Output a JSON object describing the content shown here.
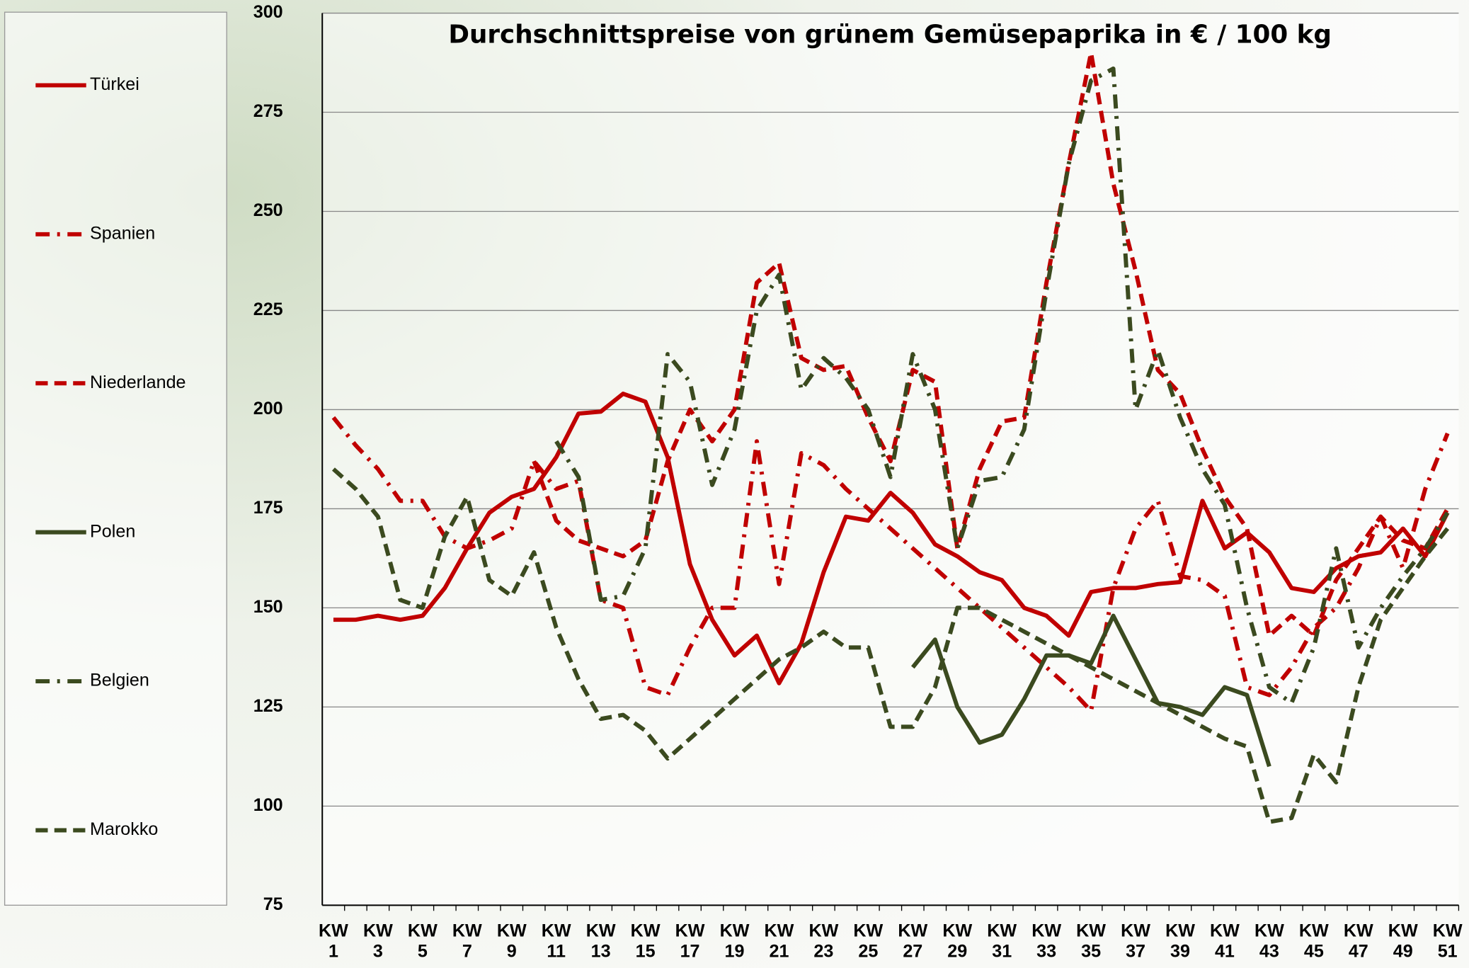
{
  "chart_data": {
    "type": "line",
    "title": "Durchschnittspreise von grünem Gemüsepaprika in € / 100 kg",
    "categories": [
      "KW 1",
      null,
      "KW 3",
      null,
      "KW 5",
      null,
      "KW 7",
      null,
      "KW 9",
      null,
      "KW 11",
      null,
      "KW 13",
      null,
      "KW 15",
      null,
      "KW 17",
      null,
      "KW 19",
      null,
      "KW 21",
      null,
      "KW 23",
      null,
      "KW 25",
      null,
      "KW 27",
      null,
      "KW 29",
      null,
      "KW 31",
      null,
      "KW 33",
      null,
      "KW 35",
      null,
      "KW 37",
      null,
      "KW 39",
      null,
      "KW 41",
      null,
      "KW 43",
      null,
      "KW 45",
      null,
      "KW 47",
      null,
      "KW 49",
      null,
      "KW 51"
    ],
    "ylim": [
      75,
      300
    ],
    "yticks": [
      75,
      100,
      125,
      150,
      175,
      200,
      225,
      250,
      275,
      300
    ],
    "grid": true,
    "legend": "left",
    "series": [
      {
        "name": "Türkei",
        "color": "#c00000",
        "dash": "solid",
        "values": [
          147,
          147,
          148,
          147,
          148,
          155,
          165,
          174,
          178,
          180,
          188,
          199,
          199.5,
          204,
          202,
          188,
          161,
          147,
          138,
          143,
          131,
          141,
          159,
          173,
          172,
          179,
          174,
          166,
          163,
          159,
          157,
          150,
          148,
          143,
          154,
          155,
          155,
          156,
          156.5,
          177,
          165,
          169,
          164,
          155,
          154,
          160,
          163,
          164,
          170,
          163,
          174
        ]
      },
      {
        "name": "Spanien",
        "color": "#c00000",
        "dash": "dashdot",
        "values": [
          198,
          191,
          185,
          177,
          177,
          168,
          165,
          167,
          170,
          187,
          180,
          182,
          152,
          150,
          130,
          128,
          140,
          150,
          150,
          192,
          156,
          189,
          186,
          180,
          175,
          170,
          165,
          160,
          155,
          150,
          145,
          140,
          135,
          130,
          124,
          155,
          170,
          177,
          158,
          157,
          153,
          130,
          128,
          135,
          145,
          150,
          160,
          173,
          160,
          180,
          194
        ]
      },
      {
        "name": "Niederlande",
        "color": "#c00000",
        "dash": "dash",
        "values": [
          null,
          null,
          null,
          null,
          null,
          null,
          null,
          null,
          null,
          187,
          172,
          167,
          165,
          163,
          167,
          187,
          200,
          192,
          200,
          232,
          237,
          213,
          210,
          211,
          198,
          187,
          210,
          207,
          165,
          185,
          197,
          198,
          232,
          262,
          290,
          257,
          235,
          210,
          204,
          190,
          178,
          170,
          143,
          148,
          143,
          157,
          165,
          173,
          167,
          165,
          175
        ]
      },
      {
        "name": "Polen",
        "color": "#3b4a1f",
        "dash": "solid",
        "values": [
          null,
          null,
          null,
          null,
          null,
          null,
          null,
          null,
          null,
          null,
          null,
          null,
          null,
          null,
          null,
          null,
          null,
          null,
          null,
          null,
          null,
          null,
          null,
          null,
          null,
          null,
          135,
          142,
          125,
          116,
          118,
          127,
          138,
          138,
          136,
          148,
          137,
          126,
          125,
          123,
          130,
          128,
          110,
          null,
          null,
          null,
          null,
          null,
          null,
          null,
          null
        ]
      },
      {
        "name": "Belgien",
        "color": "#3b4a1f",
        "dash": "dashdot",
        "values": [
          null,
          null,
          null,
          null,
          null,
          null,
          null,
          null,
          null,
          null,
          192,
          183,
          152,
          153,
          165,
          214,
          207,
          181,
          195,
          225,
          234,
          205,
          213,
          208,
          200,
          183,
          214,
          200,
          165,
          182,
          183,
          195,
          230,
          262,
          283,
          286,
          200,
          215,
          198,
          185,
          176,
          150,
          130,
          126,
          140,
          165,
          140,
          150,
          158,
          165,
          174
        ]
      },
      {
        "name": "Marokko",
        "color": "#3b4a1f",
        "dash": "dash",
        "values": [
          185,
          180,
          173,
          152,
          150,
          168,
          178,
          157,
          153,
          164,
          145,
          132,
          122,
          123,
          119,
          112,
          117,
          122,
          127,
          132,
          137,
          140,
          144,
          140,
          140,
          120,
          120,
          130,
          150,
          150,
          147,
          144,
          141,
          138,
          135,
          132,
          129,
          126,
          123,
          120,
          117,
          115,
          96,
          97,
          113,
          106,
          130,
          147,
          155,
          163,
          170
        ]
      }
    ]
  }
}
